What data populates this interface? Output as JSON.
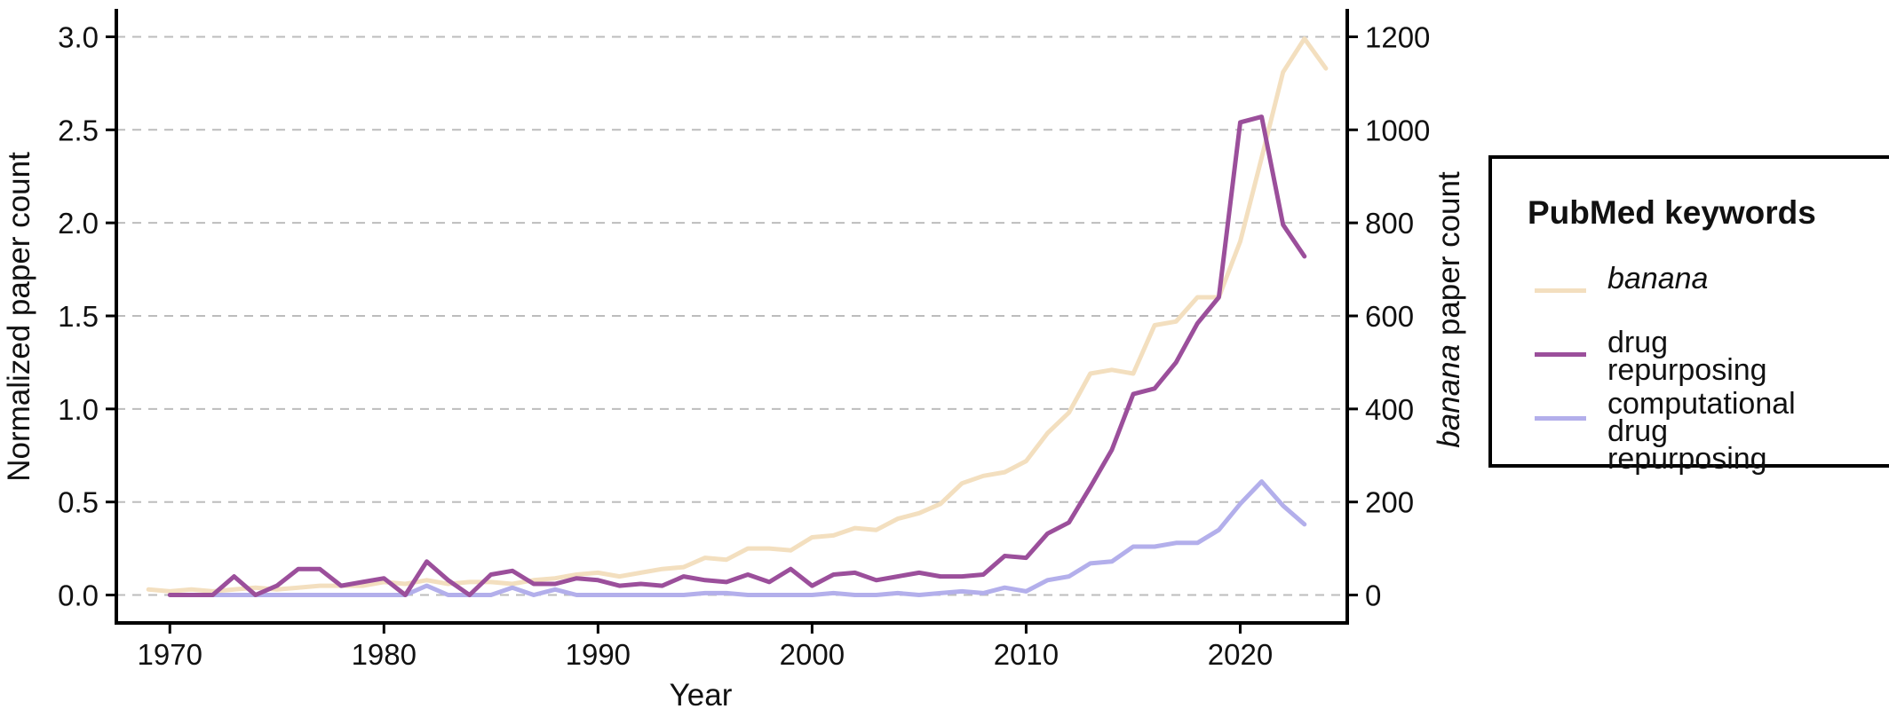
{
  "chart_data": {
    "type": "line",
    "title": "",
    "xlabel": "Year",
    "ylabel": "Normalized paper count",
    "ylabel_right": "paper count",
    "ylabel_right_italic": "banana",
    "xlim": [
      1967.5,
      2025
    ],
    "ylim": [
      -0.15,
      3.15
    ],
    "ylim_right": [
      -60,
      1260
    ],
    "x_ticks": [
      1970,
      1980,
      1990,
      2000,
      2010,
      2020
    ],
    "y_ticks": [
      0.0,
      0.5,
      1.0,
      1.5,
      2.0,
      2.5,
      3.0
    ],
    "y_tick_labels": [
      "0.0",
      "0.5",
      "1.0",
      "1.5",
      "2.0",
      "2.5",
      "3.0"
    ],
    "y_ticks_right": [
      0,
      200,
      400,
      600,
      800,
      1000,
      1200
    ],
    "y_tick_labels_right": [
      "0",
      "200",
      "400",
      "600",
      "800",
      "1000",
      "1200"
    ],
    "grid": "horizontal dashed",
    "legend_title": "PubMed keywords",
    "legend_placement": "right",
    "series": [
      {
        "name": "banana",
        "color": "#f3dfbf",
        "x": [
          1969,
          1970,
          1971,
          1972,
          1973,
          1974,
          1975,
          1976,
          1977,
          1978,
          1979,
          1980,
          1981,
          1982,
          1983,
          1984,
          1985,
          1986,
          1987,
          1988,
          1989,
          1990,
          1991,
          1992,
          1993,
          1994,
          1995,
          1996,
          1997,
          1998,
          1999,
          2000,
          2001,
          2002,
          2003,
          2004,
          2005,
          2006,
          2007,
          2008,
          2009,
          2010,
          2011,
          2012,
          2013,
          2014,
          2015,
          2016,
          2017,
          2018,
          2019,
          2020,
          2021,
          2022,
          2023,
          2024
        ],
        "y": [
          0.03,
          0.02,
          0.03,
          0.02,
          0.03,
          0.04,
          0.03,
          0.04,
          0.05,
          0.05,
          0.05,
          0.07,
          0.06,
          0.08,
          0.06,
          0.07,
          0.07,
          0.06,
          0.08,
          0.09,
          0.11,
          0.12,
          0.1,
          0.12,
          0.14,
          0.15,
          0.2,
          0.19,
          0.25,
          0.25,
          0.24,
          0.31,
          0.32,
          0.36,
          0.35,
          0.41,
          0.44,
          0.49,
          0.6,
          0.64,
          0.66,
          0.72,
          0.87,
          0.98,
          1.19,
          1.21,
          1.19,
          1.45,
          1.47,
          1.6,
          1.6,
          1.9,
          2.35,
          2.81,
          2.99,
          2.83
        ]
      },
      {
        "name": "drug repurposing",
        "color": "#9b4f9b",
        "x": [
          1970,
          1971,
          1972,
          1973,
          1974,
          1975,
          1976,
          1977,
          1978,
          1979,
          1980,
          1981,
          1982,
          1983,
          1984,
          1985,
          1986,
          1987,
          1988,
          1989,
          1990,
          1991,
          1992,
          1993,
          1994,
          1995,
          1996,
          1997,
          1998,
          1999,
          2000,
          2001,
          2002,
          2003,
          2004,
          2005,
          2006,
          2007,
          2008,
          2009,
          2010,
          2011,
          2012,
          2013,
          2014,
          2015,
          2016,
          2017,
          2018,
          2019,
          2020,
          2021,
          2022,
          2023
        ],
        "y": [
          0.0,
          0.0,
          0.0,
          0.1,
          0.0,
          0.05,
          0.14,
          0.14,
          0.05,
          0.07,
          0.09,
          0.0,
          0.18,
          0.08,
          0.0,
          0.11,
          0.13,
          0.06,
          0.06,
          0.09,
          0.08,
          0.05,
          0.06,
          0.05,
          0.1,
          0.08,
          0.07,
          0.11,
          0.07,
          0.14,
          0.05,
          0.11,
          0.12,
          0.08,
          0.1,
          0.12,
          0.1,
          0.1,
          0.11,
          0.21,
          0.2,
          0.33,
          0.39,
          0.58,
          0.78,
          1.08,
          1.11,
          1.25,
          1.46,
          1.6,
          2.54,
          2.57,
          1.99,
          1.82
        ]
      },
      {
        "name": "computational\ndrug repurposing",
        "color": "#b3afeb",
        "x": [
          1970,
          1971,
          1972,
          1973,
          1974,
          1975,
          1976,
          1977,
          1978,
          1979,
          1980,
          1981,
          1982,
          1983,
          1984,
          1985,
          1986,
          1987,
          1988,
          1989,
          1990,
          1991,
          1992,
          1993,
          1994,
          1995,
          1996,
          1997,
          1998,
          1999,
          2000,
          2001,
          2002,
          2003,
          2004,
          2005,
          2006,
          2007,
          2008,
          2009,
          2010,
          2011,
          2012,
          2013,
          2014,
          2015,
          2016,
          2017,
          2018,
          2019,
          2020,
          2021,
          2022,
          2023
        ],
        "y": [
          0.0,
          0.0,
          0.0,
          0.0,
          0.0,
          0.0,
          0.0,
          0.0,
          0.0,
          0.0,
          0.0,
          0.0,
          0.05,
          0.0,
          0.0,
          0.0,
          0.04,
          0.0,
          0.03,
          0.0,
          0.0,
          0.0,
          0.0,
          0.0,
          0.0,
          0.01,
          0.01,
          0.0,
          0.0,
          0.0,
          0.0,
          0.01,
          0.0,
          0.0,
          0.01,
          0.0,
          0.01,
          0.02,
          0.01,
          0.04,
          0.02,
          0.08,
          0.1,
          0.17,
          0.18,
          0.26,
          0.26,
          0.28,
          0.28,
          0.35,
          0.49,
          0.61,
          0.48,
          0.38
        ]
      }
    ]
  }
}
